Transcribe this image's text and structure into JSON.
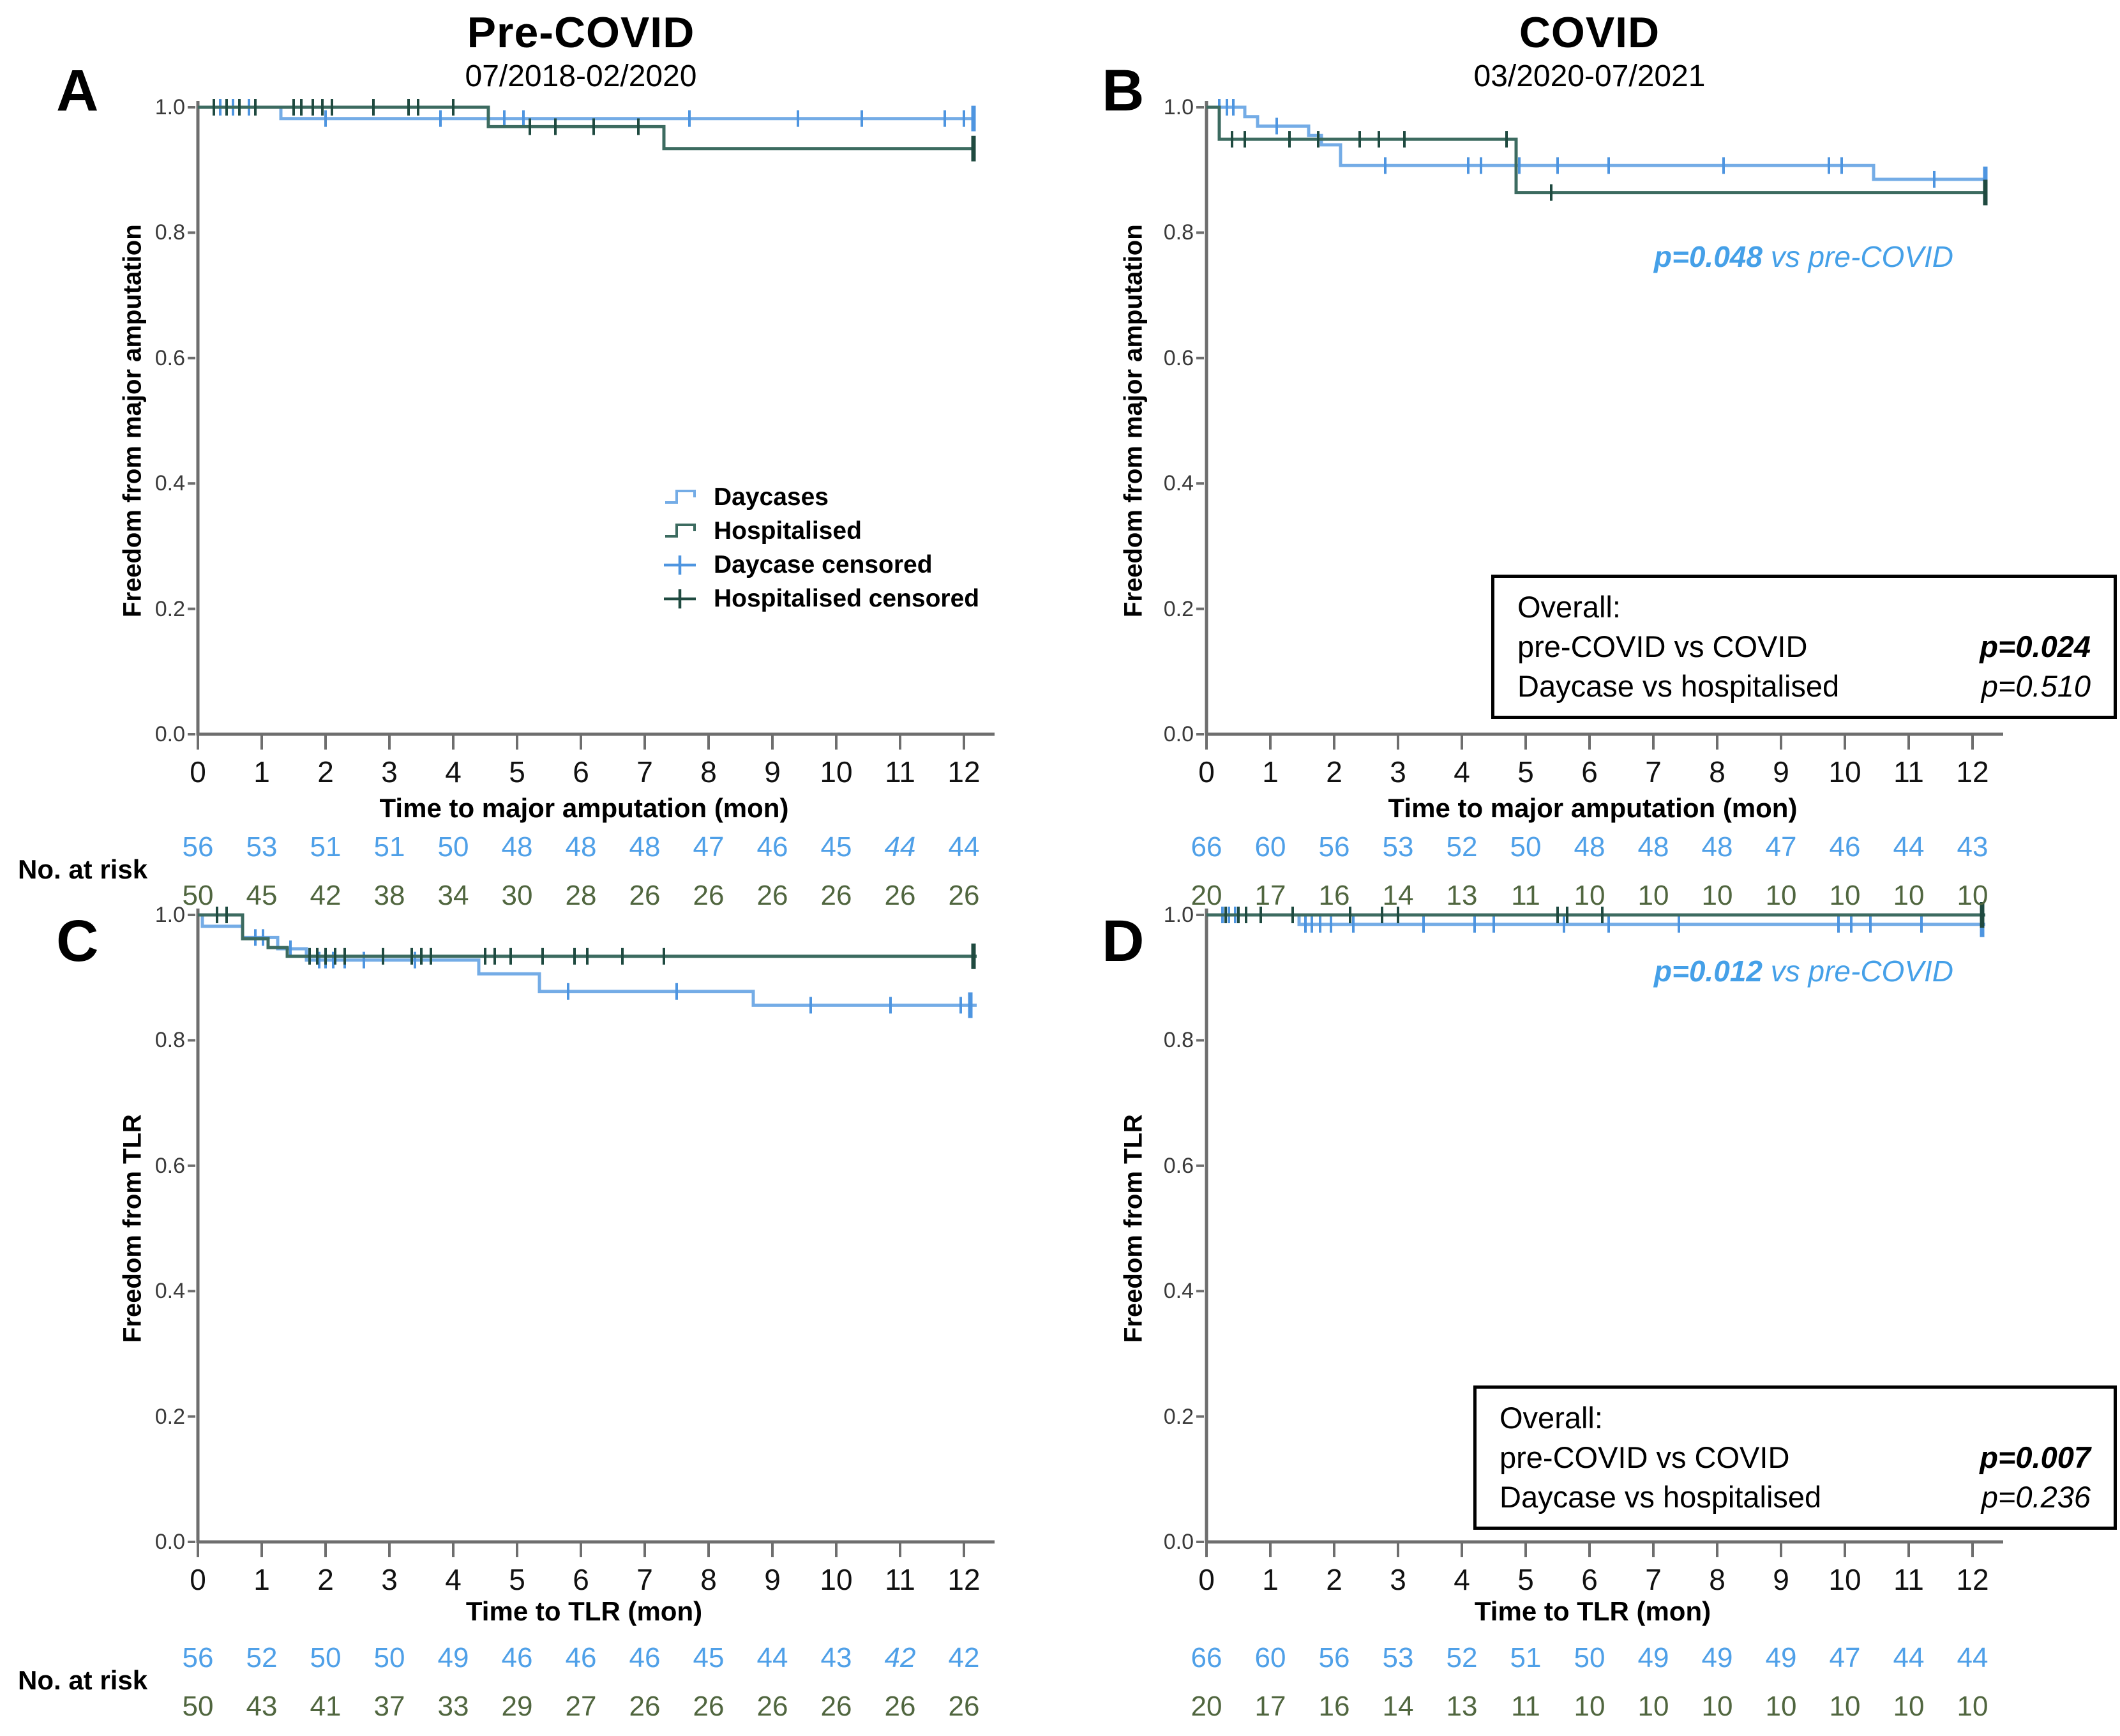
{
  "figure": {
    "columns": [
      {
        "title": "Pre-COVID",
        "subtitle": "07/2018-02/2020"
      },
      {
        "title": "COVID",
        "subtitle": "03/2020-07/2021"
      }
    ],
    "no_at_risk_label": "No. at risk"
  },
  "legend": {
    "entries": [
      {
        "label": "Daycases",
        "type": "line",
        "series": "daycase"
      },
      {
        "label": "Hospitalised",
        "type": "line",
        "series": "hospitalised"
      },
      {
        "label": "Daycase censored",
        "type": "censor",
        "series": "daycase"
      },
      {
        "label": "Hospitalised censored",
        "type": "censor",
        "series": "hospitalised"
      }
    ]
  },
  "colors": {
    "daycase_line": "#74ACE6",
    "daycase_censor": "#4E95E0",
    "daycase_number": "#4FA0E8",
    "hospitalised_line": "#3C6B60",
    "hospitalised_censor": "#1F4A40",
    "hospitalised_number": "#50663F",
    "p_note": "#45A0E8",
    "axis": "#6e6e6e",
    "tick_text": "#3a3a3a"
  },
  "chart_data": [
    {
      "id": "A",
      "letter": "A",
      "type": "line",
      "ylabel": "Freedom from major amputation",
      "xlabel": "Time to major amputation (mon)",
      "xticks": [
        0,
        1,
        2,
        3,
        4,
        5,
        6,
        7,
        8,
        9,
        10,
        11,
        12
      ],
      "yticks": [
        "0.0",
        "0.2",
        "0.4",
        "0.6",
        "0.8",
        "1.0"
      ],
      "xlim": [
        0,
        12.5
      ],
      "ylim": [
        0,
        1
      ],
      "series": [
        {
          "name": "Daycases",
          "key": "daycase",
          "steps": [
            [
              0,
              1
            ],
            [
              1.3,
              1
            ],
            [
              1.3,
              0.982
            ],
            [
              12.15,
              0.982
            ]
          ],
          "censors": [
            [
              0.35,
              1
            ],
            [
              0.55,
              1
            ],
            [
              0.8,
              1
            ],
            [
              2.0,
              0.982
            ],
            [
              3.8,
              0.982
            ],
            [
              4.8,
              0.982
            ],
            [
              5.1,
              0.982
            ],
            [
              7.7,
              0.982
            ],
            [
              9.4,
              0.982
            ],
            [
              10.4,
              0.982
            ],
            [
              11.7,
              0.982
            ],
            [
              12.0,
              0.982
            ]
          ],
          "terminal_censor": [
            12.15,
            0.982
          ]
        },
        {
          "name": "Hospitalised",
          "key": "hospitalised",
          "steps": [
            [
              0,
              1
            ],
            [
              4.55,
              1
            ],
            [
              4.55,
              0.969
            ],
            [
              7.3,
              0.969
            ],
            [
              7.3,
              0.934
            ],
            [
              12.15,
              0.934
            ]
          ],
          "censors": [
            [
              0.25,
              1
            ],
            [
              0.45,
              1
            ],
            [
              0.65,
              1
            ],
            [
              0.9,
              1
            ],
            [
              1.5,
              1
            ],
            [
              1.62,
              1
            ],
            [
              1.8,
              1
            ],
            [
              1.95,
              1
            ],
            [
              2.1,
              1
            ],
            [
              2.75,
              1
            ],
            [
              3.3,
              1
            ],
            [
              3.45,
              1
            ],
            [
              4.0,
              1
            ],
            [
              5.2,
              0.969
            ],
            [
              5.6,
              0.969
            ],
            [
              6.2,
              0.969
            ],
            [
              6.9,
              0.969
            ]
          ],
          "terminal_censor": [
            12.15,
            0.934
          ]
        }
      ],
      "at_risk": {
        "daycase": [
          56,
          53,
          51,
          51,
          50,
          48,
          48,
          48,
          47,
          46,
          45,
          44,
          44
        ],
        "hospitalised": [
          50,
          45,
          42,
          38,
          34,
          30,
          28,
          26,
          26,
          26,
          26,
          26,
          26
        ],
        "italic_daycase_indices": [
          11
        ]
      }
    },
    {
      "id": "B",
      "letter": "B",
      "type": "line",
      "ylabel": "Freedom from major amputation",
      "xlabel": "Time to major amputation (mon)",
      "xticks": [
        0,
        1,
        2,
        3,
        4,
        5,
        6,
        7,
        8,
        9,
        10,
        11,
        12
      ],
      "yticks": [
        "0.0",
        "0.2",
        "0.4",
        "0.6",
        "0.8",
        "1.0"
      ],
      "xlim": [
        0,
        12.5
      ],
      "ylim": [
        0,
        1
      ],
      "series": [
        {
          "name": "Daycases",
          "key": "daycase",
          "steps": [
            [
              0,
              1
            ],
            [
              0.6,
              1
            ],
            [
              0.6,
              0.985
            ],
            [
              0.8,
              0.985
            ],
            [
              0.8,
              0.97
            ],
            [
              1.6,
              0.97
            ],
            [
              1.6,
              0.955
            ],
            [
              1.8,
              0.955
            ],
            [
              1.8,
              0.94
            ],
            [
              2.1,
              0.94
            ],
            [
              2.1,
              0.907
            ],
            [
              10.45,
              0.907
            ],
            [
              10.45,
              0.885
            ],
            [
              12.2,
              0.885
            ]
          ],
          "censors": [
            [
              0.2,
              1
            ],
            [
              0.32,
              1
            ],
            [
              0.42,
              1
            ],
            [
              1.1,
              0.97
            ],
            [
              2.8,
              0.907
            ],
            [
              4.1,
              0.907
            ],
            [
              4.3,
              0.907
            ],
            [
              4.9,
              0.907
            ],
            [
              5.5,
              0.907
            ],
            [
              6.3,
              0.907
            ],
            [
              8.1,
              0.907
            ],
            [
              9.75,
              0.907
            ],
            [
              9.95,
              0.907
            ],
            [
              11.4,
              0.885
            ]
          ],
          "terminal_censor": [
            12.2,
            0.885
          ]
        },
        {
          "name": "Hospitalised",
          "key": "hospitalised",
          "steps": [
            [
              0,
              1
            ],
            [
              0.2,
              1
            ],
            [
              0.2,
              0.949
            ],
            [
              4.85,
              0.949
            ],
            [
              4.85,
              0.864
            ],
            [
              12.2,
              0.864
            ]
          ],
          "censors": [
            [
              0.4,
              0.949
            ],
            [
              0.6,
              0.949
            ],
            [
              1.3,
              0.949
            ],
            [
              1.75,
              0.949
            ],
            [
              2.4,
              0.949
            ],
            [
              2.7,
              0.949
            ],
            [
              3.1,
              0.949
            ],
            [
              4.7,
              0.949
            ],
            [
              5.4,
              0.864
            ]
          ],
          "terminal_censor": [
            12.2,
            0.864
          ]
        }
      ],
      "at_risk": {
        "daycase": [
          66,
          60,
          56,
          53,
          52,
          50,
          48,
          48,
          48,
          47,
          46,
          44,
          43
        ],
        "hospitalised": [
          20,
          17,
          16,
          14,
          13,
          11,
          10,
          10,
          10,
          10,
          10,
          10,
          10
        ],
        "italic_daycase_indices": []
      },
      "p_note": {
        "bold": "p=0.048",
        "rest": " vs pre-COVID"
      },
      "overall_box": {
        "title": "Overall:",
        "rows": [
          {
            "label": "pre-COVID vs COVID",
            "p": "p=0.024",
            "bold": true
          },
          {
            "label": "Daycase vs hospitalised",
            "p": "p=0.510",
            "bold": false
          }
        ]
      }
    },
    {
      "id": "C",
      "letter": "C",
      "type": "line",
      "ylabel": "Freedom from TLR",
      "xlabel": "Time to TLR (mon)",
      "xticks": [
        0,
        1,
        2,
        3,
        4,
        5,
        6,
        7,
        8,
        9,
        10,
        11,
        12
      ],
      "yticks": [
        "0.0",
        "0.2",
        "0.4",
        "0.6",
        "0.8",
        "1.0"
      ],
      "xlim": [
        0,
        12.5
      ],
      "ylim": [
        0,
        1
      ],
      "series": [
        {
          "name": "Daycases",
          "key": "daycase",
          "steps": [
            [
              0,
              1
            ],
            [
              0.07,
              1
            ],
            [
              0.07,
              0.982
            ],
            [
              0.7,
              0.982
            ],
            [
              0.7,
              0.964
            ],
            [
              1.25,
              0.964
            ],
            [
              1.25,
              0.946
            ],
            [
              1.7,
              0.946
            ],
            [
              1.7,
              0.928
            ],
            [
              4.4,
              0.928
            ],
            [
              4.4,
              0.906
            ],
            [
              5.35,
              0.906
            ],
            [
              5.35,
              0.878
            ],
            [
              8.7,
              0.878
            ],
            [
              8.7,
              0.856
            ],
            [
              12.2,
              0.856
            ]
          ],
          "censors": [
            [
              0.9,
              0.964
            ],
            [
              1.02,
              0.964
            ],
            [
              1.45,
              0.946
            ],
            [
              1.9,
              0.928
            ],
            [
              2.0,
              0.928
            ],
            [
              2.12,
              0.928
            ],
            [
              2.3,
              0.928
            ],
            [
              2.6,
              0.928
            ],
            [
              3.4,
              0.928
            ],
            [
              5.8,
              0.878
            ],
            [
              7.5,
              0.878
            ],
            [
              9.6,
              0.856
            ],
            [
              10.85,
              0.856
            ],
            [
              11.95,
              0.856
            ]
          ],
          "terminal_censor": [
            12.1,
            0.856
          ]
        },
        {
          "name": "Hospitalised",
          "key": "hospitalised",
          "steps": [
            [
              0,
              1
            ],
            [
              0.7,
              1
            ],
            [
              0.7,
              0.962
            ],
            [
              1.1,
              0.962
            ],
            [
              1.1,
              0.948
            ],
            [
              1.4,
              0.948
            ],
            [
              1.4,
              0.934
            ],
            [
              12.2,
              0.934
            ]
          ],
          "censors": [
            [
              0.3,
              1
            ],
            [
              0.45,
              1
            ],
            [
              1.75,
              0.934
            ],
            [
              1.87,
              0.934
            ],
            [
              2.0,
              0.934
            ],
            [
              2.15,
              0.934
            ],
            [
              2.3,
              0.934
            ],
            [
              2.9,
              0.934
            ],
            [
              3.35,
              0.934
            ],
            [
              3.5,
              0.934
            ],
            [
              3.65,
              0.934
            ],
            [
              4.5,
              0.934
            ],
            [
              4.65,
              0.934
            ],
            [
              4.9,
              0.934
            ],
            [
              5.4,
              0.934
            ],
            [
              5.9,
              0.934
            ],
            [
              6.1,
              0.934
            ],
            [
              6.65,
              0.934
            ],
            [
              7.3,
              0.934
            ]
          ],
          "terminal_censor": [
            12.15,
            0.934
          ]
        }
      ],
      "at_risk": {
        "daycase": [
          56,
          52,
          50,
          50,
          49,
          46,
          46,
          46,
          45,
          44,
          43,
          42,
          42
        ],
        "hospitalised": [
          50,
          43,
          41,
          37,
          33,
          29,
          27,
          26,
          26,
          26,
          26,
          26,
          26
        ],
        "italic_daycase_indices": [
          11
        ]
      }
    },
    {
      "id": "D",
      "letter": "D",
      "type": "line",
      "ylabel": "Freedom from TLR",
      "xlabel": "Time to TLR (mon)",
      "xticks": [
        0,
        1,
        2,
        3,
        4,
        5,
        6,
        7,
        8,
        9,
        10,
        11,
        12
      ],
      "yticks": [
        "0.0",
        "0.2",
        "0.4",
        "0.6",
        "0.8",
        "1.0"
      ],
      "xlim": [
        0,
        12.5
      ],
      "ylim": [
        0,
        1
      ],
      "series": [
        {
          "name": "Daycases",
          "key": "daycase",
          "steps": [
            [
              0,
              1
            ],
            [
              1.45,
              1
            ],
            [
              1.45,
              0.985
            ],
            [
              12.2,
              0.985
            ]
          ],
          "censors": [
            [
              0.25,
              1
            ],
            [
              0.35,
              1
            ],
            [
              0.45,
              1
            ],
            [
              1.55,
              0.985
            ],
            [
              1.65,
              0.985
            ],
            [
              1.78,
              0.985
            ],
            [
              1.95,
              0.985
            ],
            [
              2.3,
              0.985
            ],
            [
              3.4,
              0.985
            ],
            [
              4.2,
              0.985
            ],
            [
              4.5,
              0.985
            ],
            [
              5.6,
              0.985
            ],
            [
              6.3,
              0.985
            ],
            [
              7.4,
              0.985
            ],
            [
              9.9,
              0.985
            ],
            [
              10.1,
              0.985
            ],
            [
              10.4,
              0.985
            ],
            [
              11.2,
              0.985
            ]
          ],
          "terminal_censor": [
            12.15,
            0.985
          ]
        },
        {
          "name": "Hospitalised",
          "key": "hospitalised",
          "steps": [
            [
              0,
              1
            ],
            [
              12.2,
              1
            ]
          ],
          "censors": [
            [
              0.3,
              1
            ],
            [
              0.5,
              1
            ],
            [
              0.62,
              1
            ],
            [
              0.85,
              1
            ],
            [
              1.35,
              1
            ],
            [
              2.25,
              1
            ],
            [
              2.75,
              1
            ],
            [
              3.0,
              1
            ],
            [
              5.5,
              1
            ],
            [
              5.65,
              1
            ],
            [
              6.2,
              1
            ]
          ],
          "terminal_censor": [
            12.15,
            1
          ]
        }
      ],
      "at_risk": {
        "daycase": [
          66,
          60,
          56,
          53,
          52,
          51,
          50,
          49,
          49,
          49,
          47,
          44,
          44
        ],
        "hospitalised": [
          20,
          17,
          16,
          14,
          13,
          11,
          10,
          10,
          10,
          10,
          10,
          10,
          10
        ],
        "italic_daycase_indices": []
      },
      "p_note": {
        "bold": "p=0.012",
        "rest": " vs pre-COVID"
      },
      "overall_box": {
        "title": "Overall:",
        "rows": [
          {
            "label": "pre-COVID vs COVID",
            "p": "p=0.007",
            "bold": true
          },
          {
            "label": "Daycase vs hospitalised",
            "p": "p=0.236",
            "bold": false
          }
        ]
      }
    }
  ]
}
